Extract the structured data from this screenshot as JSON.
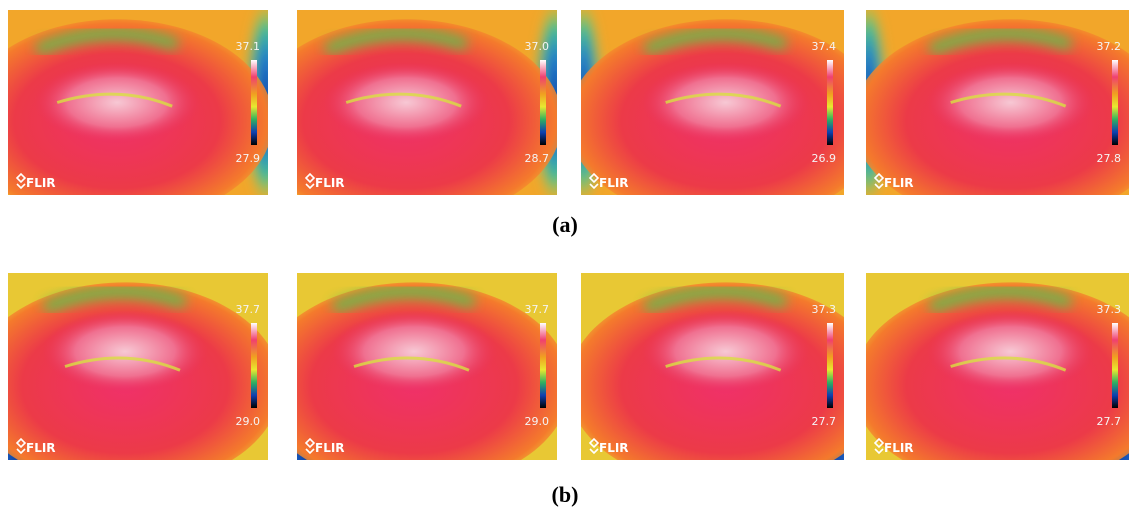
{
  "rows": [
    {
      "caption": "(a)",
      "images": [
        {
          "max": "37.1",
          "min": "27.9",
          "logo": "FLIR"
        },
        {
          "max": "37.0",
          "min": "28.7",
          "logo": "FLIR"
        },
        {
          "max": "37.4",
          "min": "26.9",
          "logo": "FLIR"
        },
        {
          "max": "37.2",
          "min": "27.8",
          "logo": "FLIR"
        }
      ]
    },
    {
      "caption": "(b)",
      "images": [
        {
          "max": "37.7",
          "min": "29.0",
          "logo": "FLIR"
        },
        {
          "max": "37.7",
          "min": "29.0",
          "logo": "FLIR"
        },
        {
          "max": "37.3",
          "min": "27.7",
          "logo": "FLIR"
        },
        {
          "max": "37.3",
          "min": "27.7",
          "logo": "FLIR"
        }
      ]
    }
  ]
}
